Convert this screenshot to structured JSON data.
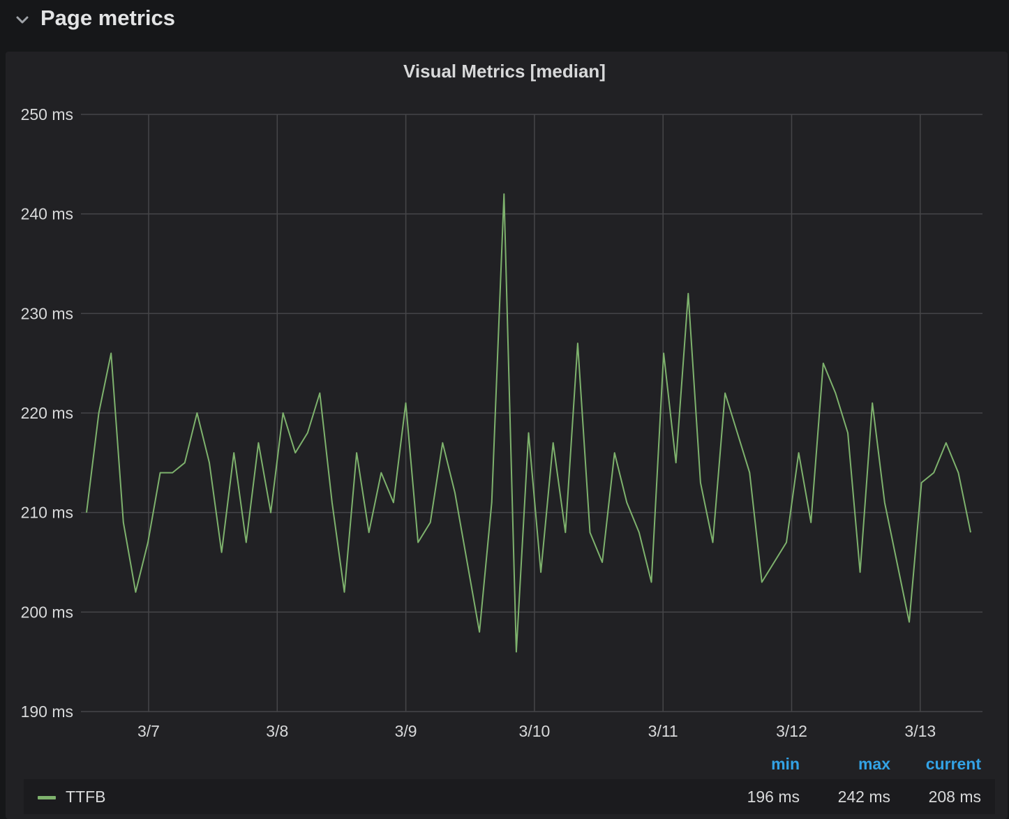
{
  "row": {
    "title": "Page metrics"
  },
  "colors": {
    "series": "#7eb26d",
    "legend_header": "#33a2e5",
    "grid": "#464649"
  },
  "chart_data": {
    "type": "line",
    "title": "Visual Metrics [median]",
    "ylim": [
      190,
      250
    ],
    "yticks": [
      "190 ms",
      "200 ms",
      "210 ms",
      "220 ms",
      "230 ms",
      "240 ms",
      "250 ms"
    ],
    "xticks": [
      "3/7",
      "3/8",
      "3/9",
      "3/10",
      "3/11",
      "3/12",
      "3/13"
    ],
    "grid": true,
    "legend_placement": "bottom",
    "series": [
      {
        "name": "TTFB",
        "values": [
          210,
          220,
          226,
          209,
          202,
          207,
          214,
          214,
          215,
          220,
          215,
          206,
          216,
          207,
          217,
          210,
          220,
          216,
          218,
          222,
          211,
          202,
          216,
          208,
          214,
          211,
          221,
          207,
          209,
          217,
          212,
          205,
          198,
          211,
          242,
          196,
          218,
          204,
          217,
          208,
          227,
          208,
          205,
          216,
          211,
          208,
          203,
          226,
          215,
          232,
          213,
          207,
          222,
          218,
          214,
          203,
          205,
          207,
          216,
          209,
          225,
          222,
          218,
          204,
          221,
          211,
          205,
          199,
          213,
          214,
          217,
          214,
          208
        ]
      }
    ]
  },
  "legend": {
    "headers": {
      "min": "min",
      "max": "max",
      "current": "current"
    },
    "items": [
      {
        "name": "TTFB",
        "min": "196 ms",
        "max": "242 ms",
        "current": "208 ms"
      }
    ]
  }
}
